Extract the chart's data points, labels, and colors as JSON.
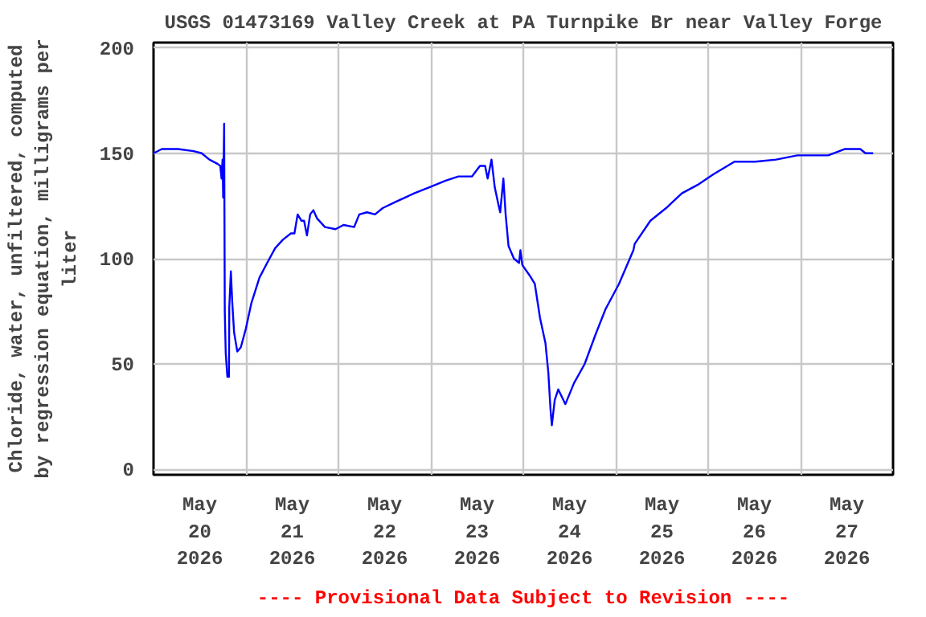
{
  "chart_data": {
    "type": "line",
    "title": "USGS 01473169 Valley Creek at PA Turnpike Br near Valley Forge",
    "ylabel": "Chloride, water, unfiltered, computed by regression equation, milligrams per liter",
    "annotations": [
      "---- Provisional Data Subject to Revision ----"
    ],
    "xlim": [
      "2026-05-20T00:00",
      "2026-05-28T00:00"
    ],
    "xticks": [
      {
        "value": "2026-05-20T00:00",
        "label": null
      },
      {
        "value": "2026-05-21T00:00",
        "label": null
      },
      {
        "value": "2026-05-22T00:00",
        "label": null
      },
      {
        "value": "2026-05-23T00:00",
        "label": null
      },
      {
        "value": "2026-05-24T00:00",
        "label": null
      },
      {
        "value": "2026-05-25T00:00",
        "label": null
      },
      {
        "value": "2026-05-26T00:00",
        "label": null
      },
      {
        "value": "2026-05-27T00:00",
        "label": null
      },
      {
        "value": "2026-05-28T00:00",
        "label": null
      },
      {
        "value": "2026-05-20T12:00",
        "label": "May 20 2026"
      },
      {
        "value": "2026-05-21T12:00",
        "label": "May 21 2026"
      },
      {
        "value": "2026-05-22T12:00",
        "label": "May 22 2026"
      },
      {
        "value": "2026-05-23T12:00",
        "label": "May 23 2026"
      },
      {
        "value": "2026-05-24T12:00",
        "label": "May 24 2026"
      },
      {
        "value": "2026-05-25T12:00",
        "label": "May 25 2026"
      },
      {
        "value": "2026-05-26T12:00",
        "label": "May 26 2026"
      },
      {
        "value": "2026-05-27T12:00",
        "label": "May 27 2026"
      }
    ],
    "ylim": [
      -2.5,
      202.5
    ],
    "yticks": [
      0,
      50,
      100,
      150,
      200
    ],
    "grid": true,
    "marker": "none",
    "line_style": "solid",
    "series": [
      {
        "color": "#0000ff",
        "x": [
          "2026-05-20T00:00",
          "2026-05-20T02:10",
          "2026-05-20T06:20",
          "2026-05-20T10:25",
          "2026-05-20T12:30",
          "2026-05-20T14:30",
          "2026-05-20T16:35",
          "2026-05-20T17:20",
          "2026-05-20T17:40",
          "2026-05-20T17:55",
          "2026-05-20T18:05",
          "2026-05-20T18:20",
          "2026-05-20T18:30",
          "2026-05-20T18:45",
          "2026-05-20T19:10",
          "2026-05-20T19:35",
          "2026-05-20T19:40",
          "2026-05-20T20:05",
          "2026-05-20T20:25",
          "2026-05-20T20:55",
          "2026-05-20T21:45",
          "2026-05-20T22:40",
          "2026-05-21T00:00",
          "2026-05-21T01:25",
          "2026-05-21T03:30",
          "2026-05-21T05:30",
          "2026-05-21T07:35",
          "2026-05-21T09:35",
          "2026-05-21T11:40",
          "2026-05-21T12:35",
          "2026-05-21T13:25",
          "2026-05-21T14:25",
          "2026-05-21T15:05",
          "2026-05-21T15:50",
          "2026-05-21T16:40",
          "2026-05-21T17:30",
          "2026-05-21T18:30",
          "2026-05-21T20:30",
          "2026-05-21T23:15",
          "2026-05-22T01:20",
          "2026-05-22T04:05",
          "2026-05-22T05:25",
          "2026-05-22T07:25",
          "2026-05-22T09:30",
          "2026-05-22T11:30",
          "2026-05-22T14:55",
          "2026-05-22T19:40",
          "2026-05-22T23:45",
          "2026-05-23T03:50",
          "2026-05-23T07:10",
          "2026-05-23T10:40",
          "2026-05-23T12:45",
          "2026-05-23T14:05",
          "2026-05-23T14:45",
          "2026-05-23T15:45",
          "2026-05-23T16:35",
          "2026-05-23T17:30",
          "2026-05-23T18:00",
          "2026-05-23T18:50",
          "2026-05-23T19:25",
          "2026-05-23T20:10",
          "2026-05-23T21:35",
          "2026-05-23T22:55",
          "2026-05-23T23:15",
          "2026-05-23T23:45",
          "2026-05-24T01:40",
          "2026-05-24T03:00",
          "2026-05-24T04:20",
          "2026-05-24T05:45",
          "2026-05-24T06:30",
          "2026-05-24T07:05",
          "2026-05-24T07:25",
          "2026-05-24T08:10",
          "2026-05-24T09:05",
          "2026-05-24T10:55",
          "2026-05-24T13:10",
          "2026-05-24T15:55",
          "2026-05-24T18:45",
          "2026-05-24T21:20",
          "2026-05-25T00:50",
          "2026-05-25T04:35",
          "2026-05-25T04:55",
          "2026-05-25T09:00",
          "2026-05-25T13:05",
          "2026-05-25T17:10",
          "2026-05-25T21:15",
          "2026-05-26T01:20",
          "2026-05-26T06:50",
          "2026-05-26T12:15",
          "2026-05-26T17:40",
          "2026-05-26T23:10",
          "2026-05-27T04:35",
          "2026-05-27T07:10",
          "2026-05-27T11:25",
          "2026-05-27T15:30",
          "2026-05-27T16:50",
          "2026-05-27T18:50"
        ],
        "values": [
          150,
          152,
          152,
          151,
          150,
          147,
          145,
          144,
          138,
          147,
          129,
          164,
          75,
          55,
          44,
          44,
          77,
          94,
          80,
          65,
          56,
          58,
          67,
          79,
          91,
          98,
          105,
          109,
          112,
          112,
          121,
          118,
          118,
          111,
          121,
          123,
          119,
          115,
          114,
          116,
          115,
          121,
          122,
          121,
          124,
          127,
          131,
          134,
          137,
          139,
          139,
          144,
          144,
          138,
          147,
          134,
          126,
          122,
          138,
          121,
          106,
          100,
          98,
          104,
          97,
          92,
          88,
          72,
          60,
          46,
          28,
          21,
          33,
          38,
          31,
          41,
          50,
          64,
          76,
          88,
          104,
          107,
          118,
          124,
          131,
          135,
          140,
          146,
          146,
          147,
          149,
          149,
          149,
          152,
          152,
          150,
          150
        ]
      }
    ]
  }
}
